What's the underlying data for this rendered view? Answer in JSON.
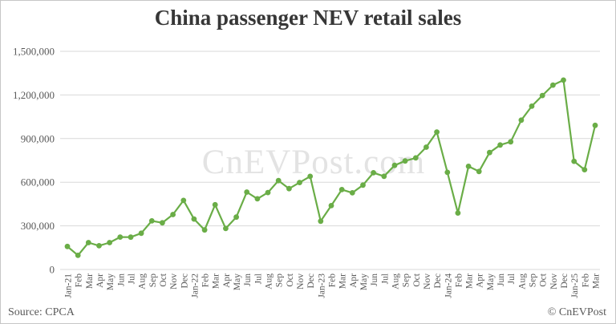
{
  "title": "China passenger NEV retail sales",
  "watermark": "CnEVPost.com",
  "footer": {
    "source": "Source: CPCA",
    "copyright": "© CnEVPost"
  },
  "colors": {
    "line": "#6aad47",
    "grid": "#d9d9d9",
    "axis_text": "#595959",
    "title_text": "#373737",
    "watermark_text": "#e3e3e3",
    "border": "#c6c6c6"
  },
  "chart_data": {
    "type": "line",
    "title": "China passenger NEV retail sales",
    "xlabel": "",
    "ylabel": "",
    "ylim": [
      0,
      1500000
    ],
    "y_ticks": [
      0,
      300000,
      600000,
      900000,
      1200000,
      1500000
    ],
    "y_tick_labels": [
      "0",
      "300,000",
      "600,000",
      "900,000",
      "1,200,000",
      "1,500,000"
    ],
    "grid": "horizontal",
    "legend": "none",
    "x": [
      "Jan-21",
      "Feb",
      "Mar",
      "Apr",
      "May",
      "Jun",
      "Jul",
      "Aug",
      "Sep",
      "Oct",
      "Nov",
      "Dec",
      "Jan-22",
      "Feb",
      "Mar",
      "Apr",
      "May",
      "Jun",
      "Jul",
      "Aug",
      "Sep",
      "Oct",
      "Nov",
      "Dec",
      "Jan-23",
      "Feb",
      "Mar",
      "Apr",
      "May",
      "Jun",
      "Jul",
      "Aug",
      "Sep",
      "Oct",
      "Nov",
      "Dec",
      "Jan-24",
      "Feb",
      "Mar",
      "Apr",
      "May",
      "Jun",
      "Jul",
      "Aug",
      "Sep",
      "Oct",
      "Nov",
      "Dec",
      "Jan-25",
      "Feb",
      "Mar"
    ],
    "series": [
      {
        "name": "China passenger NEV retail sales",
        "values": [
          158000,
          97000,
          185000,
          163000,
          185000,
          223000,
          222000,
          249000,
          334000,
          321000,
          378000,
          475000,
          347000,
          272000,
          445000,
          282000,
          360000,
          532000,
          486000,
          529000,
          611000,
          556000,
          598000,
          640000,
          332000,
          439000,
          549000,
          527000,
          580000,
          665000,
          641000,
          716000,
          746000,
          767000,
          841000,
          945000,
          668000,
          388000,
          709000,
          674000,
          804000,
          856000,
          878000,
          1027000,
          1123000,
          1196000,
          1268000,
          1302000,
          744000,
          686000,
          991000
        ]
      }
    ]
  }
}
